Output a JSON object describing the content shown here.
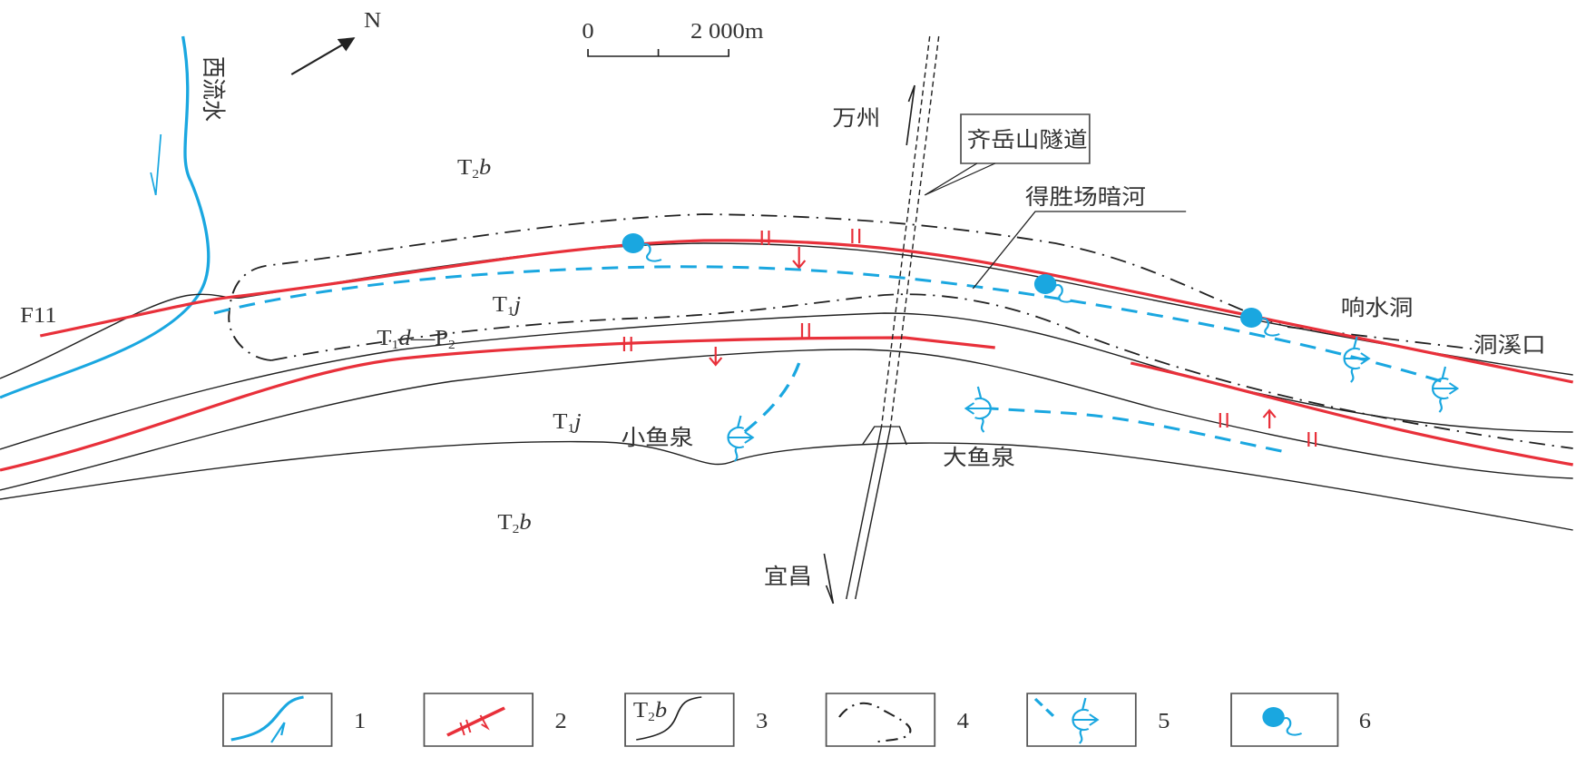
{
  "colors": {
    "fault": "#e8303a",
    "water": "#1aa7e0",
    "line": "#222222"
  },
  "north": {
    "label": "N"
  },
  "scale_bar": {
    "start": "0",
    "end": "2 000m"
  },
  "river": {
    "label": "西流水"
  },
  "fault": {
    "label": "F11"
  },
  "strata": {
    "t2b_top": {
      "base": "T",
      "sub": "2",
      "italic": "b"
    },
    "t1j_upper": {
      "base": "T",
      "sub": "1",
      "italic": "j"
    },
    "t1d_p2": {
      "base": "T",
      "sub": "1",
      "italic": "d",
      "dash": "—P",
      "sub2": "2"
    },
    "t1j_lower": {
      "base": "T",
      "sub": "1",
      "italic": "j"
    },
    "t2b_bottom": {
      "base": "T",
      "sub": "2",
      "italic": "b"
    }
  },
  "directions": {
    "wanzhou": "万州",
    "yichang": "宜昌"
  },
  "tunnel": {
    "label": "齐岳山隧道"
  },
  "underground_river": {
    "label": "得胜场暗河"
  },
  "outlets": {
    "xiaoyuquan": "小鱼泉",
    "dayuquan": "大鱼泉",
    "xiangshuidong": "响水洞",
    "dongxikou": "洞溪口"
  },
  "legend": [
    {
      "num": "1",
      "icon": "river-icon"
    },
    {
      "num": "2",
      "icon": "fault-icon"
    },
    {
      "num": "3",
      "icon": "stratum-boundary-icon",
      "sample": {
        "base": "T",
        "sub": "2",
        "italic": "b"
      }
    },
    {
      "num": "4",
      "icon": "karst-boundary-icon"
    },
    {
      "num": "5",
      "icon": "underground-river-outlet-icon"
    },
    {
      "num": "6",
      "icon": "spring-icon"
    }
  ]
}
